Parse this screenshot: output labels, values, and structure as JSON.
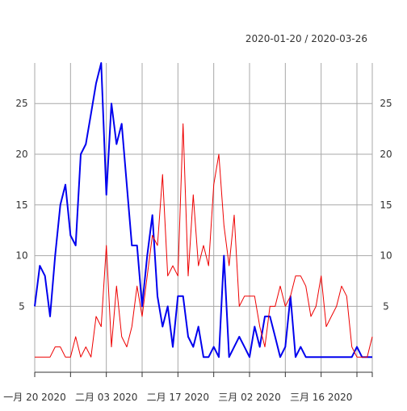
{
  "chart_data": {
    "type": "line",
    "title": "2020-01-20 / 2020-03-26",
    "x_start": "2020-01-20",
    "x_end": "2020-03-26",
    "x_ticks": [
      {
        "date": "2020-01-20",
        "label": "一月 20 2020"
      },
      {
        "date": "2020-02-03",
        "label": "二月 03 2020"
      },
      {
        "date": "2020-02-17",
        "label": "二月 17 2020"
      },
      {
        "date": "2020-03-02",
        "label": "三月 02 2020"
      },
      {
        "date": "2020-03-16",
        "label": "三月 16 2020"
      }
    ],
    "ylim": [
      -1.5,
      29
    ],
    "y_ticks": [
      5,
      10,
      15,
      20,
      25
    ],
    "grid": true,
    "series": [
      {
        "color": "#0000ee",
        "values": [
          5,
          9,
          8,
          4,
          10,
          15,
          17,
          12,
          11,
          20,
          21,
          24,
          27,
          29,
          16,
          25,
          21,
          23,
          17,
          11,
          11,
          5,
          10,
          14,
          6,
          3,
          5,
          1,
          6,
          6,
          2,
          1,
          3,
          0,
          0,
          1,
          0,
          10,
          0,
          1,
          2,
          1,
          0,
          3,
          1,
          4,
          4,
          2,
          0,
          1,
          6,
          0,
          1,
          0,
          0,
          0,
          0,
          0,
          0,
          0,
          0,
          0,
          0,
          1,
          0,
          0,
          0
        ]
      },
      {
        "color": "#ee0000",
        "values": [
          0,
          0,
          0,
          0,
          1,
          1,
          0,
          0,
          2,
          0,
          1,
          0,
          4,
          3,
          11,
          1,
          7,
          2,
          1,
          3,
          7,
          4,
          8,
          12,
          11,
          18,
          8,
          9,
          8,
          23,
          8,
          16,
          9,
          11,
          9,
          17,
          20,
          13,
          9,
          14,
          5,
          6,
          6,
          6,
          3,
          1,
          5,
          5,
          7,
          5,
          6,
          8,
          8,
          7,
          4,
          5,
          8,
          3,
          4,
          5,
          7,
          6,
          1,
          0,
          0,
          0,
          2
        ]
      }
    ]
  }
}
